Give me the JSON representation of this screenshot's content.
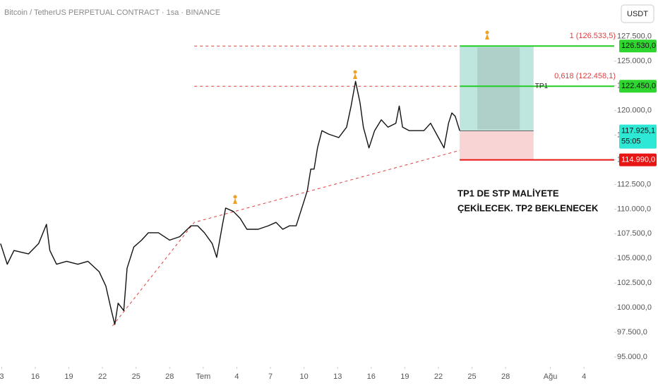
{
  "chart_data": {
    "type": "line",
    "title": "Bitcoin / TetherUS PERPETUAL CONTRACT · 1sa · BINANCE",
    "currency": "USDT",
    "color": "#111111",
    "x": [
      12.9,
      13.5,
      14.1,
      15.4,
      16.3,
      17.0,
      17.3,
      17.9,
      18.8,
      19.8,
      20.7,
      21.7,
      22.3,
      22.8,
      23.1,
      23.4,
      23.9,
      24.2,
      24.8,
      25.5,
      26.1,
      27.0,
      28.0,
      28.9,
      29.9,
      30.5,
      31.1,
      31.8,
      32.2,
      32.7,
      33.0,
      33.7,
      34.3,
      34.9,
      35.9,
      36.8,
      37.5,
      38.1,
      38.7,
      39.3,
      40.0,
      40.3,
      40.6,
      40.9,
      41.2,
      41.6,
      42.2,
      43.1,
      43.8,
      44.2,
      44.6,
      45.0,
      45.3,
      45.8,
      46.3,
      46.9,
      47.5,
      48.2,
      48.5,
      48.8,
      49.4,
      50.1,
      50.7,
      51.3,
      52.0,
      52.5,
      52.9,
      53.2,
      53.5,
      53.9
    ],
    "values": [
      106500,
      104400,
      105800,
      105450,
      106500,
      108450,
      105800,
      104400,
      104700,
      104400,
      104700,
      103650,
      102200,
      99700,
      98300,
      100450,
      99700,
      104000,
      106150,
      106850,
      107600,
      107600,
      106850,
      107200,
      108300,
      108300,
      107600,
      106500,
      105100,
      108300,
      110100,
      109750,
      109050,
      107950,
      107950,
      108300,
      108650,
      107950,
      108300,
      108300,
      110800,
      111900,
      114050,
      114050,
      116200,
      117950,
      117600,
      117250,
      118300,
      120450,
      122950,
      120800,
      118300,
      116200,
      117950,
      119050,
      118300,
      118700,
      120450,
      118300,
      117950,
      117950,
      117950,
      118700,
      117250,
      116200,
      118700,
      119750,
      119400,
      117950
    ],
    "xlim": [
      12.85,
      67.7
    ],
    "ylim": [
      94000,
      131200
    ],
    "xticks": [
      {
        "value": 13,
        "label": "3"
      },
      16,
      19,
      22,
      25,
      28,
      {
        "value": 31,
        "label": "Tem"
      },
      {
        "value": 34,
        "label": "4"
      },
      {
        "value": 37,
        "label": "7"
      },
      {
        "value": 40,
        "label": "10"
      },
      {
        "value": 43,
        "label": "13"
      },
      {
        "value": 46,
        "label": "16"
      },
      {
        "value": 49,
        "label": "19"
      },
      {
        "value": 52,
        "label": "22"
      },
      {
        "value": 55,
        "label": "25"
      },
      {
        "value": 58,
        "label": "28"
      },
      {
        "value": 62,
        "label": "Ağu"
      },
      {
        "value": 65,
        "label": "4"
      }
    ],
    "yticks": [
      {
        "value": 95000,
        "label": "95.000,0"
      },
      {
        "value": 97500,
        "label": "97.500,0"
      },
      {
        "value": 100000,
        "label": "100.000,0"
      },
      {
        "value": 102500,
        "label": "102.500,0"
      },
      {
        "value": 105000,
        "label": "105.000,0"
      },
      {
        "value": 107500,
        "label": "107.500,0"
      },
      {
        "value": 110000,
        "label": "110.000,0"
      },
      {
        "value": 112500,
        "label": "112.500,0"
      },
      {
        "value": 115000,
        "label": "115.000,0"
      },
      {
        "value": 117500,
        "label": "117.500,0"
      },
      {
        "value": 120000,
        "label": "120.000,0"
      },
      {
        "value": 122500,
        "label": "122.500,0"
      },
      {
        "value": 125000,
        "label": "125.000,0"
      },
      {
        "value": 127500,
        "label": "127.500,0"
      }
    ],
    "grid": false,
    "trendline": {
      "x": [
        22.9,
        30.2,
        53.9
      ],
      "values": [
        98150,
        108650,
        115950
      ],
      "color": "#e04040"
    },
    "level_range": [
      30.2,
      53.9
    ],
    "levels": [
      {
        "value": 126533.5,
        "label": "1 (126.533,5)"
      },
      {
        "value": 122458.1,
        "label": "0,618 (122.458,1)"
      }
    ],
    "tp_label": "TP1",
    "position": {
      "range": [
        53.9,
        60.5
      ],
      "entry": 117925.1,
      "target": 126530,
      "tp1": 122450,
      "stop": 114990
    },
    "price_tags": [
      {
        "value": 126530,
        "label": "126.530,0",
        "color": "#2fd62f"
      },
      {
        "value": 122450,
        "label": "122.450,0",
        "color": "#2fd62f"
      },
      {
        "value": 117925.1,
        "label": "117.925,1",
        "color": "#2ee8d6",
        "countdown": "55:05"
      },
      {
        "value": 114990,
        "label": "114.990,0",
        "color": "#e81515"
      }
    ],
    "annotation": [
      "TP1 DE STP MALİYETE",
      "ÇEKİLECEK. TP2 BEKLENECEK"
    ]
  }
}
